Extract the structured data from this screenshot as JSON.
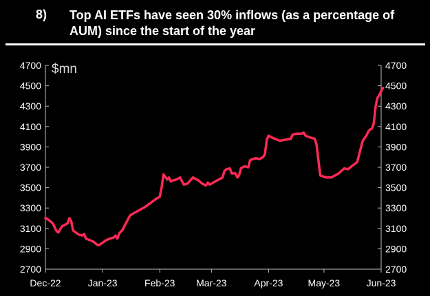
{
  "header": {
    "number": "8)",
    "title": "Top AI ETFs have seen 30% inflows (as a percentage of AUM) since the start of the year"
  },
  "colors": {
    "background": "#000000",
    "text": "#ffffff",
    "axis": "#bfbfbf",
    "series": "#ff2a55"
  },
  "chart_data": {
    "type": "line",
    "title": "Top AI ETFs have seen 30% inflows (as a percentage of AUM) since the start of the year",
    "ylabel": "$mn",
    "xlabel": "",
    "ylim": [
      2700,
      4700
    ],
    "y_ticks": [
      2700,
      2900,
      3100,
      3300,
      3500,
      3700,
      3900,
      4100,
      4300,
      4500,
      4700
    ],
    "x_ticks": [
      "Dec-22",
      "Jan-23",
      "Feb-23",
      "Mar-23",
      "Apr-23",
      "May-23",
      "Jun-23"
    ],
    "x_tick_dates": [
      "2022-12-01",
      "2023-01-01",
      "2023-02-01",
      "2023-03-01",
      "2023-04-01",
      "2023-05-01",
      "2023-06-01"
    ],
    "grid": false,
    "legend": "none",
    "series": [
      {
        "points": [
          [
            "2022-12-01",
            3205
          ],
          [
            "2022-12-03",
            3180
          ],
          [
            "2022-12-05",
            3150
          ],
          [
            "2022-12-07",
            3075
          ],
          [
            "2022-12-08",
            3060
          ],
          [
            "2022-12-10",
            3120
          ],
          [
            "2022-12-13",
            3150
          ],
          [
            "2022-12-14",
            3200
          ],
          [
            "2022-12-15",
            3170
          ],
          [
            "2022-12-16",
            3080
          ],
          [
            "2022-12-19",
            3040
          ],
          [
            "2022-12-21",
            3030
          ],
          [
            "2022-12-22",
            3045
          ],
          [
            "2022-12-23",
            3000
          ],
          [
            "2022-12-27",
            2970
          ],
          [
            "2022-12-29",
            2940
          ],
          [
            "2022-12-30",
            2935
          ],
          [
            "2023-01-03",
            2985
          ],
          [
            "2023-01-05",
            3000
          ],
          [
            "2023-01-07",
            3010
          ],
          [
            "2023-01-08",
            3030
          ],
          [
            "2023-01-09",
            3000
          ],
          [
            "2023-01-10",
            3050
          ],
          [
            "2023-01-12",
            3090
          ],
          [
            "2023-01-13",
            3130
          ],
          [
            "2023-01-16",
            3230
          ],
          [
            "2023-01-18",
            3250
          ],
          [
            "2023-01-20",
            3270
          ],
          [
            "2023-01-24",
            3310
          ],
          [
            "2023-01-27",
            3350
          ],
          [
            "2023-01-30",
            3390
          ],
          [
            "2023-02-01",
            3410
          ],
          [
            "2023-02-02",
            3500
          ],
          [
            "2023-02-03",
            3630
          ],
          [
            "2023-02-05",
            3580
          ],
          [
            "2023-02-06",
            3600
          ],
          [
            "2023-02-07",
            3560
          ],
          [
            "2023-02-08",
            3570
          ],
          [
            "2023-02-10",
            3580
          ],
          [
            "2023-02-12",
            3600
          ],
          [
            "2023-02-14",
            3530
          ],
          [
            "2023-02-16",
            3540
          ],
          [
            "2023-02-18",
            3580
          ],
          [
            "2023-02-19",
            3600
          ],
          [
            "2023-02-22",
            3570
          ],
          [
            "2023-02-24",
            3540
          ],
          [
            "2023-02-26",
            3520
          ],
          [
            "2023-02-27",
            3550
          ],
          [
            "2023-02-28",
            3530
          ],
          [
            "2023-03-01",
            3540
          ],
          [
            "2023-03-05",
            3580
          ],
          [
            "2023-03-07",
            3600
          ],
          [
            "2023-03-08",
            3660
          ],
          [
            "2023-03-09",
            3680
          ],
          [
            "2023-03-11",
            3690
          ],
          [
            "2023-03-12",
            3640
          ],
          [
            "2023-03-14",
            3640
          ],
          [
            "2023-03-15",
            3600
          ],
          [
            "2023-03-16",
            3620
          ],
          [
            "2023-03-17",
            3690
          ],
          [
            "2023-03-19",
            3710
          ],
          [
            "2023-03-21",
            3700
          ],
          [
            "2023-03-22",
            3770
          ],
          [
            "2023-03-25",
            3790
          ],
          [
            "2023-03-27",
            3780
          ],
          [
            "2023-03-29",
            3800
          ],
          [
            "2023-03-30",
            3830
          ],
          [
            "2023-03-31",
            3970
          ],
          [
            "2023-04-01",
            4010
          ],
          [
            "2023-04-03",
            3990
          ],
          [
            "2023-04-07",
            3960
          ],
          [
            "2023-04-10",
            3970
          ],
          [
            "2023-04-13",
            3980
          ],
          [
            "2023-04-14",
            4020
          ],
          [
            "2023-04-16",
            4030
          ],
          [
            "2023-04-19",
            4030
          ],
          [
            "2023-04-20",
            4040
          ],
          [
            "2023-04-21",
            4010
          ],
          [
            "2023-04-24",
            3990
          ],
          [
            "2023-04-26",
            3980
          ],
          [
            "2023-04-27",
            3920
          ],
          [
            "2023-04-28",
            3770
          ],
          [
            "2023-04-29",
            3620
          ],
          [
            "2023-05-02",
            3600
          ],
          [
            "2023-05-05",
            3600
          ],
          [
            "2023-05-09",
            3640
          ],
          [
            "2023-05-12",
            3690
          ],
          [
            "2023-05-14",
            3680
          ],
          [
            "2023-05-16",
            3710
          ],
          [
            "2023-05-19",
            3750
          ],
          [
            "2023-05-22",
            3960
          ],
          [
            "2023-05-24",
            4010
          ],
          [
            "2023-05-25",
            4050
          ],
          [
            "2023-05-26",
            4070
          ],
          [
            "2023-05-27",
            4080
          ],
          [
            "2023-05-28",
            4130
          ],
          [
            "2023-05-29",
            4300
          ],
          [
            "2023-05-30",
            4380
          ],
          [
            "2023-05-31",
            4410
          ],
          [
            "2023-06-02",
            4480
          ]
        ]
      }
    ]
  }
}
